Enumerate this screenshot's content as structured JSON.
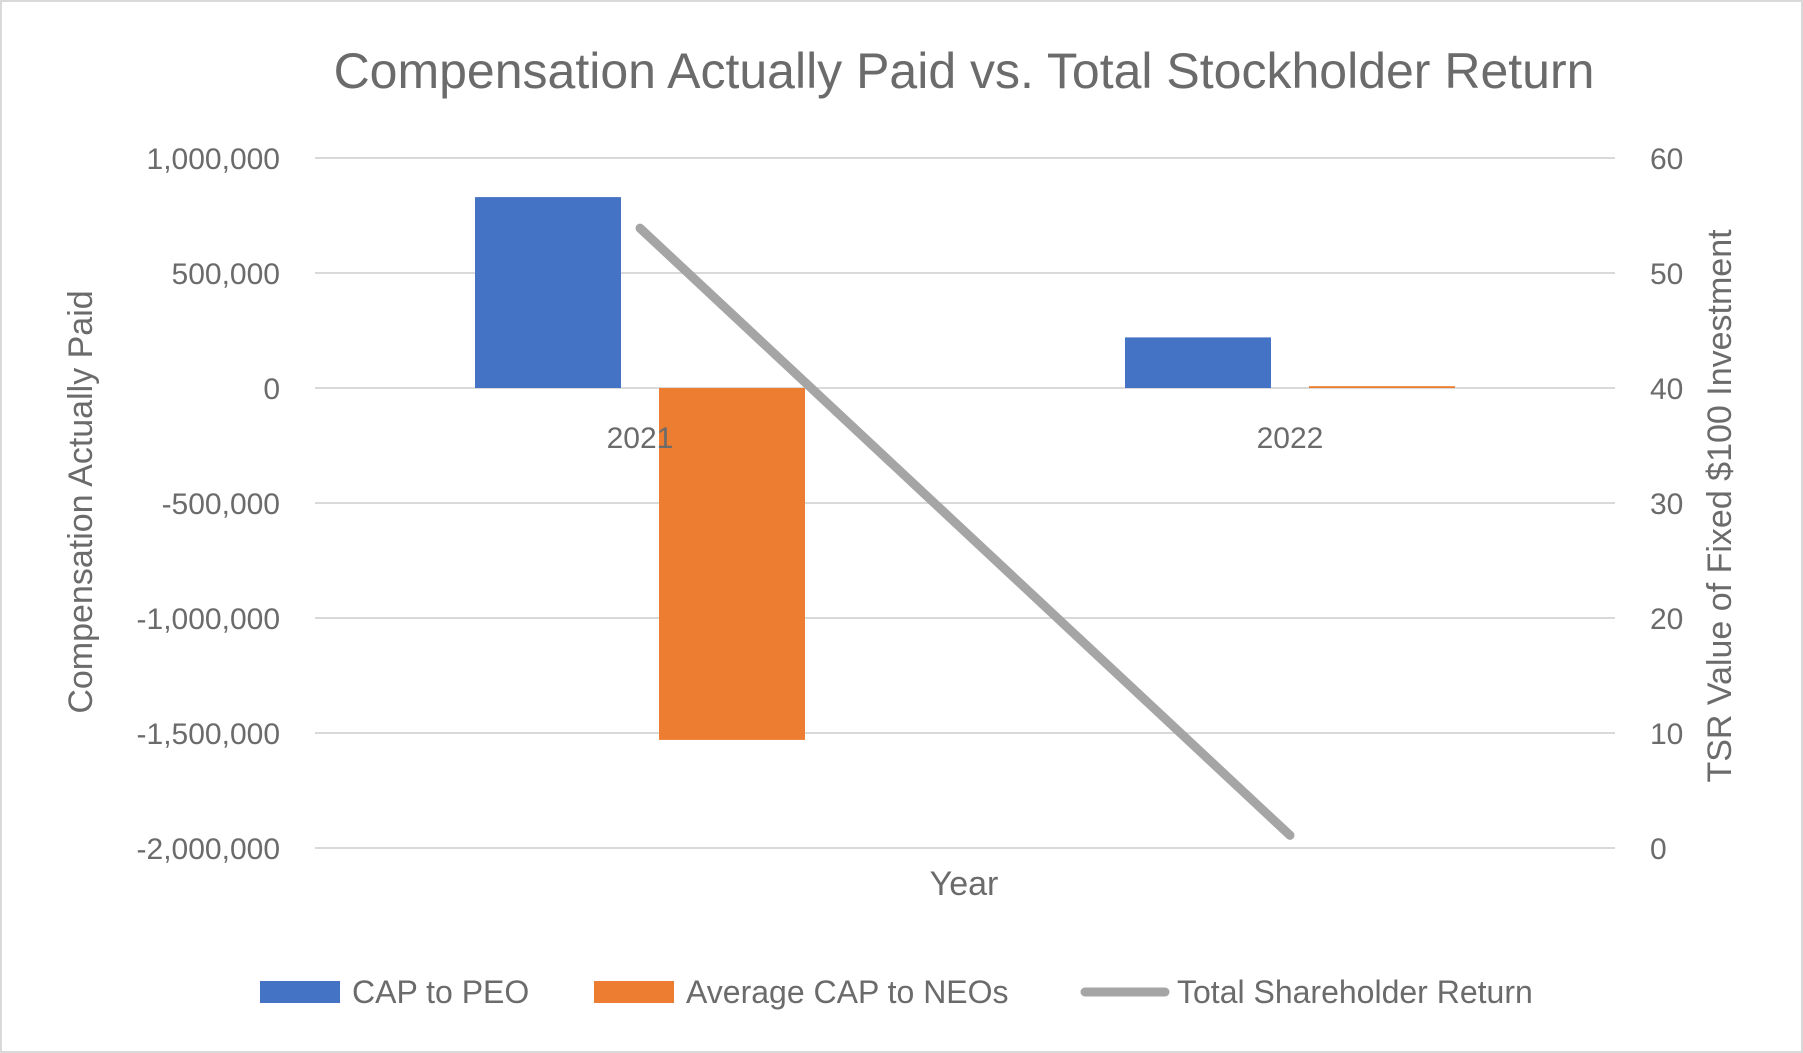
{
  "chart_data": {
    "type": "bar",
    "title": "Compensation Actually Paid vs. Total Stockholder Return",
    "xlabel": "Year",
    "ylabel": "Compensation Actually Paid",
    "y2label": "TSR Value of Fixed $100 Investment",
    "categories": [
      "2021",
      "2022"
    ],
    "ylim": [
      -2000000,
      1000000
    ],
    "y2lim": [
      0,
      60
    ],
    "yticks": [
      1000000,
      500000,
      0,
      -500000,
      -1000000,
      -1500000,
      -2000000
    ],
    "ytick_labels": [
      "1,000,000",
      "500,000",
      "0",
      "-500,000",
      "-1,000,000",
      "-1,500,000",
      "-2,000,000"
    ],
    "y2ticks": [
      60,
      50,
      40,
      30,
      20,
      10,
      0
    ],
    "y2tick_labels": [
      "60",
      "50",
      "40",
      "30",
      "20",
      "10",
      "0"
    ],
    "grid": true,
    "legend_position": "bottom",
    "series": [
      {
        "name": "CAP to PEO",
        "type": "bar",
        "axis": "left",
        "color": "#4472C4",
        "values": [
          830000,
          220000
        ]
      },
      {
        "name": "Average CAP to NEOs",
        "type": "bar",
        "axis": "left",
        "color": "#ED7D31",
        "values": [
          -1530000,
          8000
        ]
      },
      {
        "name": "Total Shareholder Return",
        "type": "line",
        "axis": "right",
        "color": "#A5A5A5",
        "values": [
          53.9,
          1.1
        ]
      }
    ]
  }
}
